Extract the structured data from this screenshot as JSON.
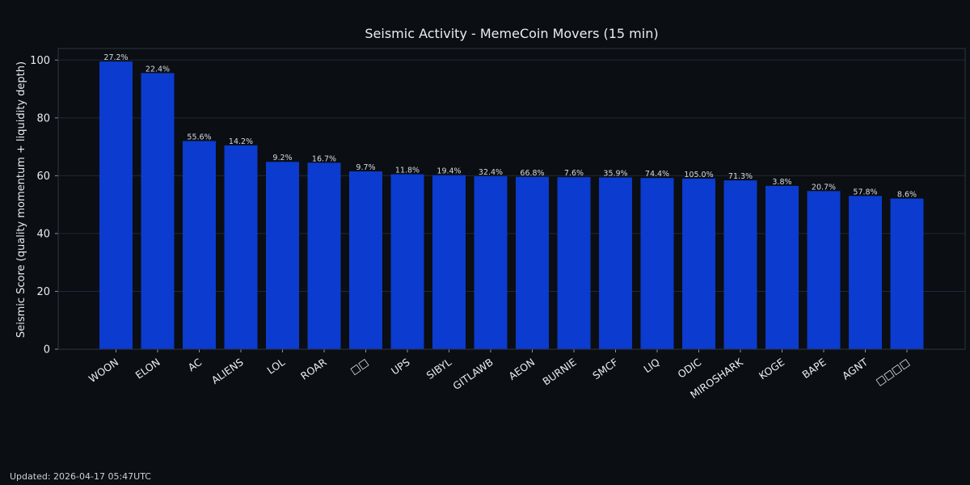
{
  "footer": {
    "updated": "Updated: 2026-04-17 05:47UTC"
  },
  "colors": {
    "background": "#0b0e12",
    "bar": "#0b3bcf",
    "grid": "#1e2a3a",
    "text": "#e6edf3"
  },
  "chart_data": {
    "type": "bar",
    "title": "Seismic Activity - MemeCoin Movers (15 min)",
    "xlabel": "",
    "ylabel": "Seismic Score (quality momentum + liquidity depth)",
    "ylim": [
      0,
      104
    ],
    "yticks": [
      0,
      20,
      40,
      60,
      80,
      100
    ],
    "grid": true,
    "categories": [
      "WOON",
      "ELON",
      "AC",
      "ALIENS",
      "LOL",
      "ROAR",
      "□□",
      "UPS",
      "SIBYL",
      "GITLAWB",
      "AEON",
      "BURNIE",
      "SMCF",
      "LIQ",
      "ODIC",
      "MIROSHARK",
      "KOGE",
      "BAPE",
      "AGNT",
      "□□□□"
    ],
    "values": [
      99.5,
      95.5,
      72.0,
      70.5,
      64.8,
      64.5,
      61.5,
      60.5,
      60.2,
      59.8,
      59.6,
      59.5,
      59.4,
      59.2,
      59.0,
      58.4,
      56.5,
      54.7,
      53.0,
      52.1
    ],
    "data_labels": [
      "27.2%",
      "22.4%",
      "55.6%",
      "14.2%",
      "9.2%",
      "16.7%",
      "9.7%",
      "11.8%",
      "19.4%",
      "32.4%",
      "66.8%",
      "7.6%",
      "35.9%",
      "74.4%",
      "105.0%",
      "71.3%",
      "3.8%",
      "20.7%",
      "57.8%",
      "8.6%"
    ]
  }
}
